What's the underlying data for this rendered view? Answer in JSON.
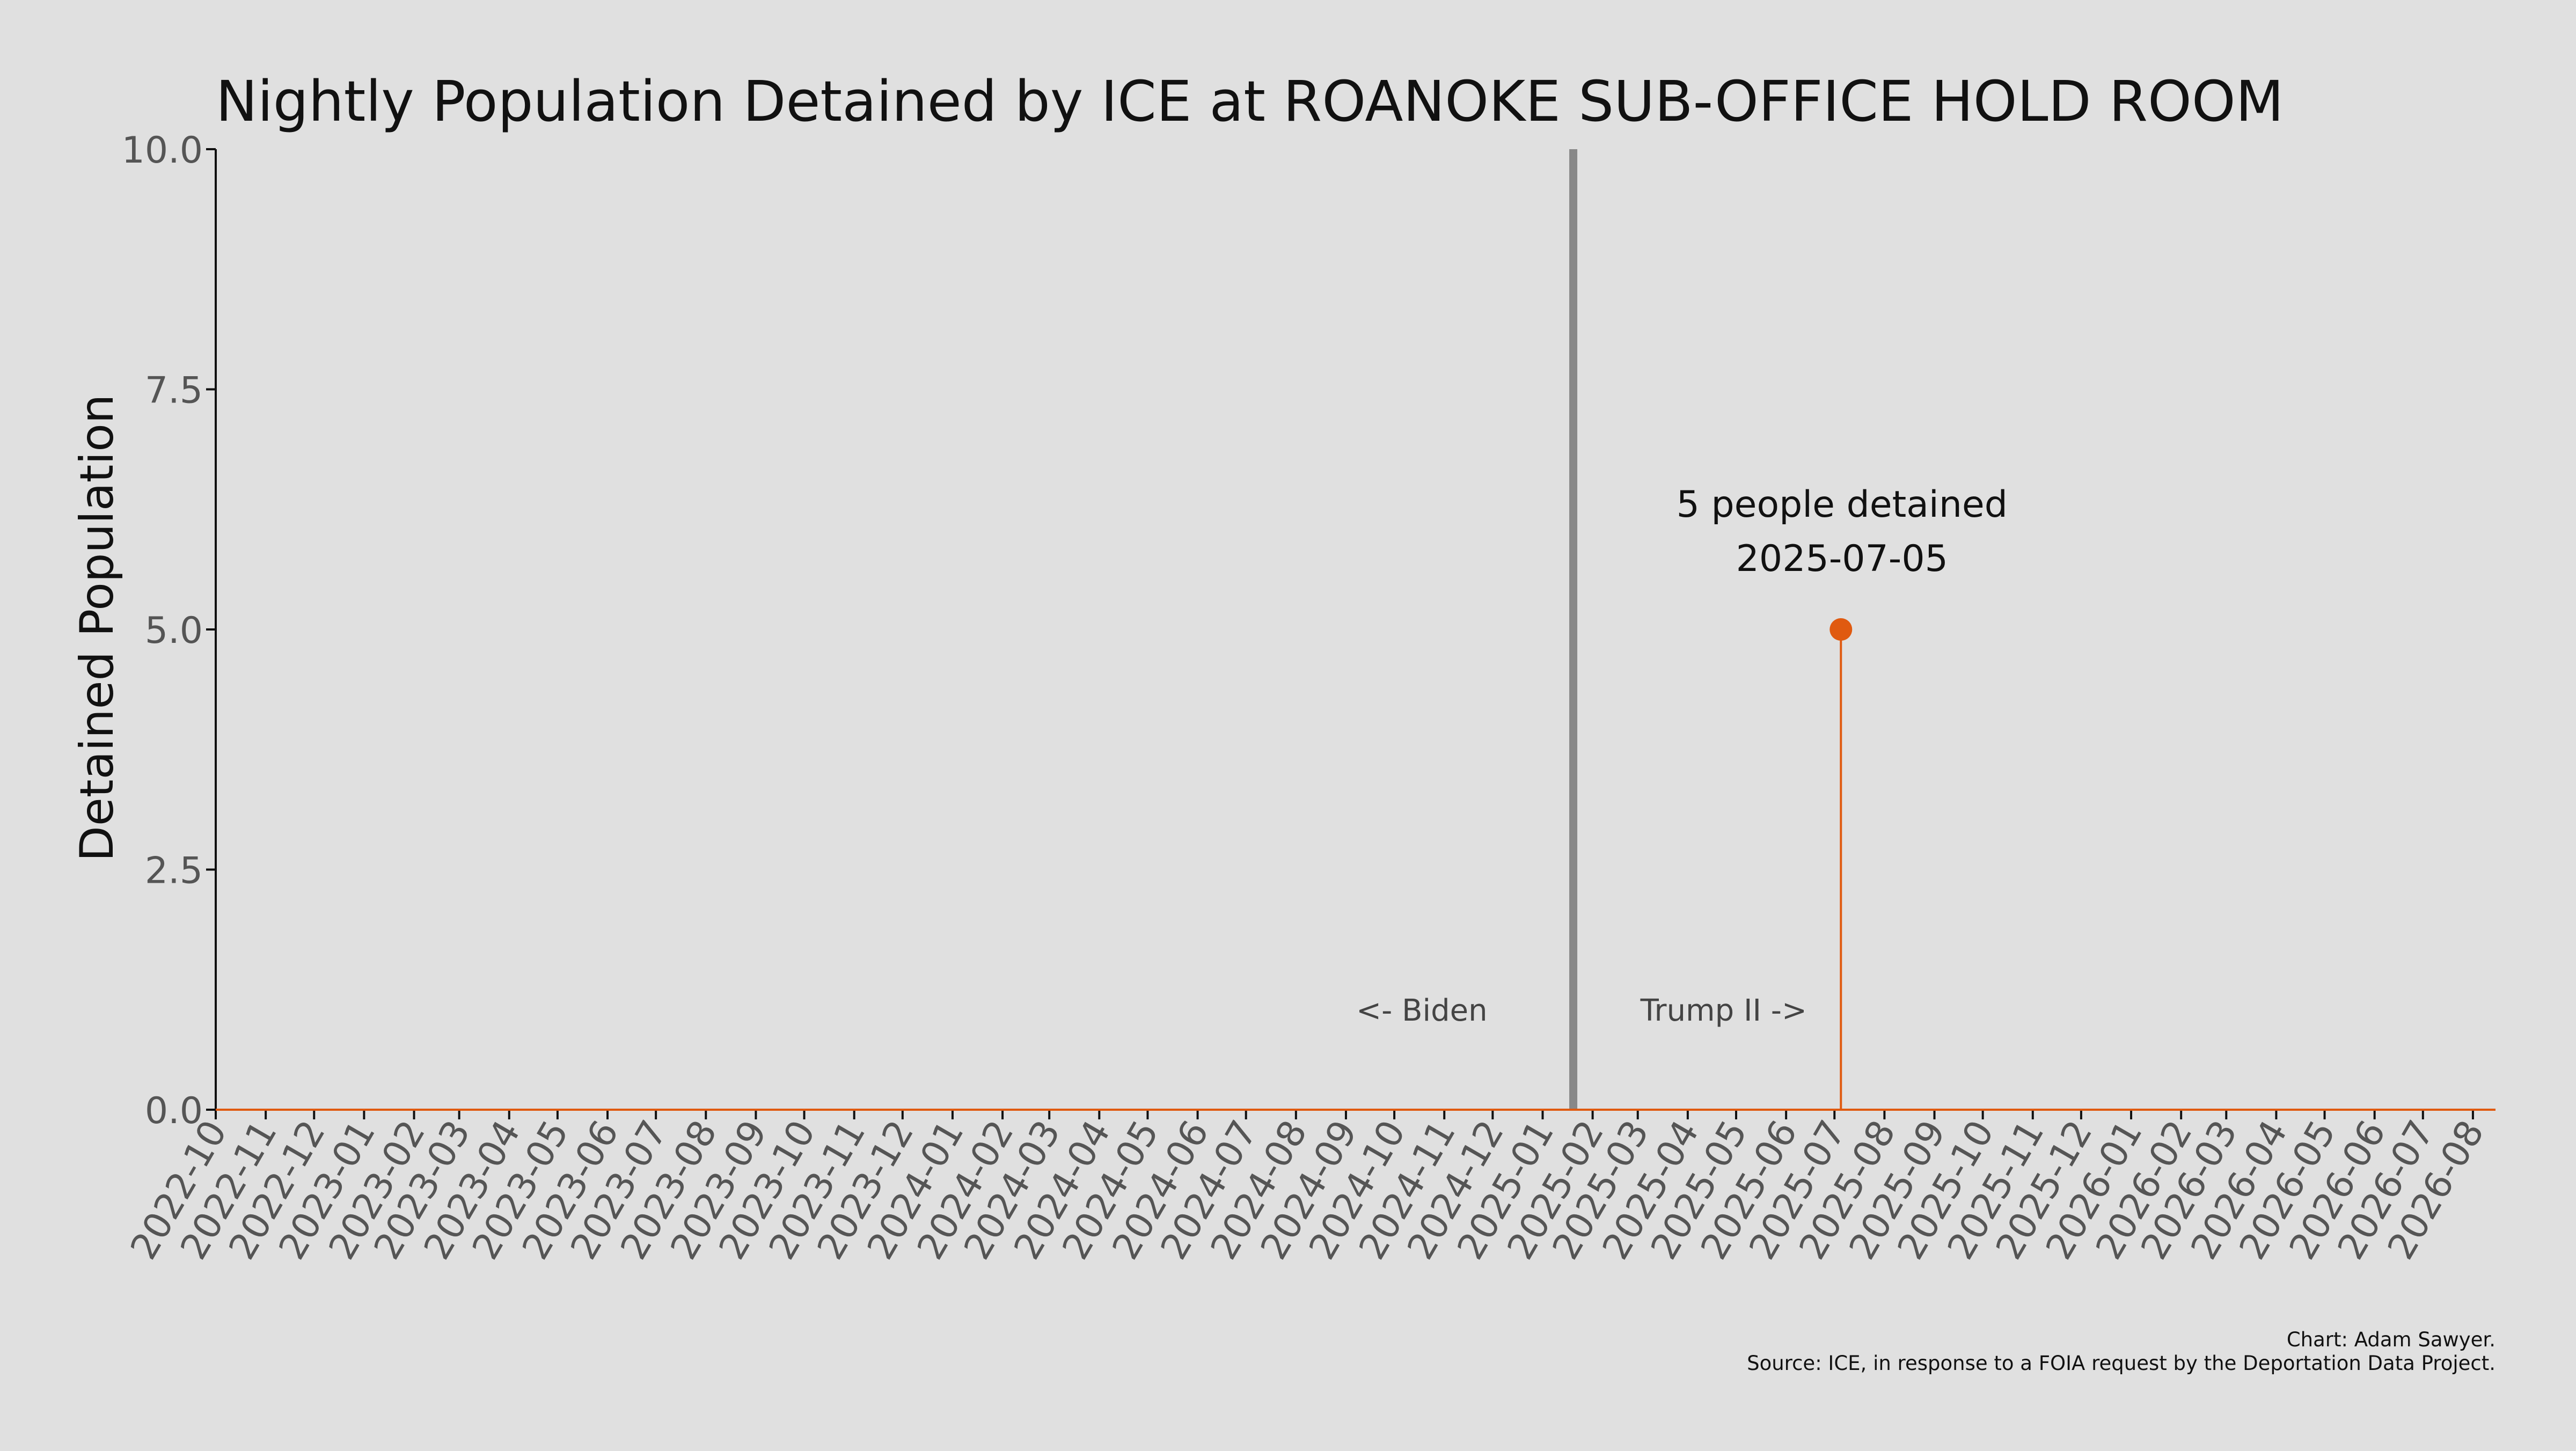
{
  "chart_data": {
    "type": "line",
    "title": "Nightly Population Detained by ICE at ROANOKE SUB-OFFICE HOLD ROOM",
    "ylabel": "Detained Population",
    "xlabel": "",
    "ylim": [
      0,
      10
    ],
    "yticks": [
      "0.0",
      "2.5",
      "5.0",
      "7.5",
      "10.0"
    ],
    "xlim": [
      "2022-10-01",
      "2026-08-15"
    ],
    "x_tick_labels": [
      "2022-10",
      "2022-11",
      "2022-12",
      "2023-01",
      "2023-02",
      "2023-03",
      "2023-04",
      "2023-05",
      "2023-06",
      "2023-07",
      "2023-08",
      "2023-09",
      "2023-10",
      "2023-11",
      "2023-12",
      "2024-01",
      "2024-02",
      "2024-03",
      "2024-04",
      "2024-05",
      "2024-06",
      "2024-07",
      "2024-08",
      "2024-09",
      "2024-10",
      "2024-11",
      "2024-12",
      "2025-01",
      "2025-02",
      "2025-03",
      "2025-04",
      "2025-05",
      "2025-06",
      "2025-07",
      "2025-08",
      "2025-09",
      "2025-10",
      "2025-11",
      "2025-12",
      "2026-01",
      "2026-02",
      "2026-03",
      "2026-04",
      "2026-05",
      "2026-06",
      "2026-07",
      "2026-08"
    ],
    "series": [
      {
        "points": [
          {
            "x": "2025-07-05",
            "y": 5
          }
        ]
      }
    ],
    "peak_annotation": {
      "line1": "5 people detained",
      "line2": "2025-07-05"
    },
    "divider": {
      "date": "2025-01-20",
      "left_label": "<- Biden",
      "right_label": "Trump II ->"
    },
    "grid": false,
    "legend": "none",
    "colors": {
      "series": "#e05a10",
      "divider": "#888888",
      "background": "#e0e0e0"
    }
  },
  "credits": {
    "line1": "Chart: Adam Sawyer.",
    "line2": "Source: ICE, in response to a FOIA request by the Deportation Data Project."
  }
}
